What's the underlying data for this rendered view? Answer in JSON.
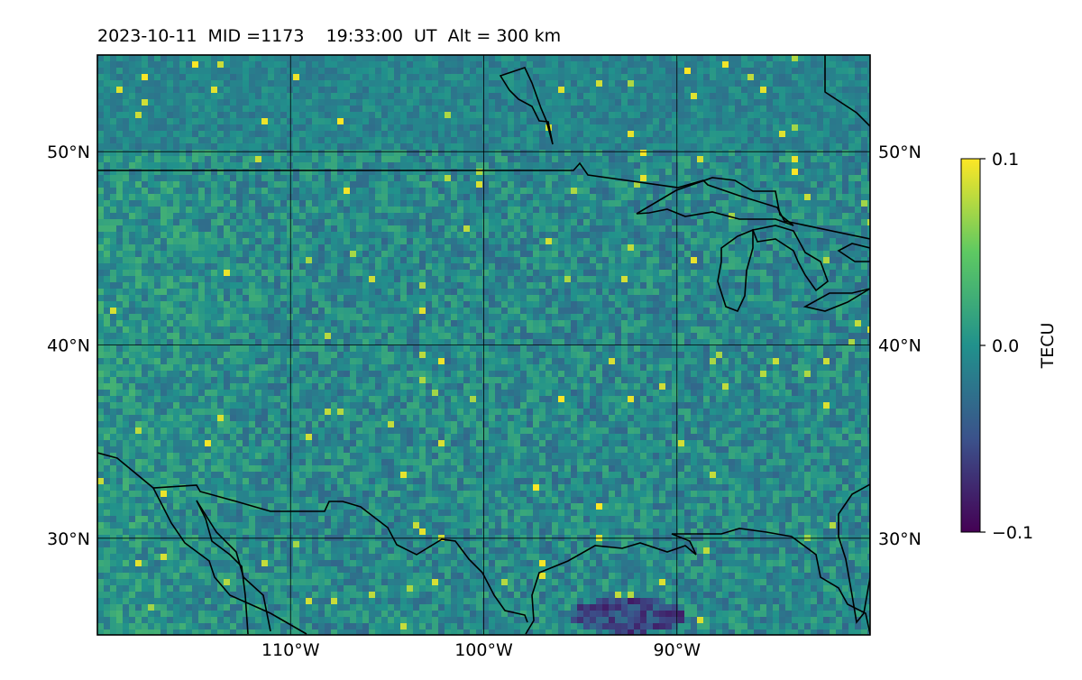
{
  "header": {
    "title": "2023-10-11  MID =1173    19:33:00  UT  Alt = 300 km"
  },
  "map": {
    "x_ticks": [
      {
        "label": "110°W",
        "lon": -110
      },
      {
        "label": "100°W",
        "lon": -100
      },
      {
        "label": "90°W",
        "lon": -90
      }
    ],
    "y_ticks": [
      {
        "label": "50°N",
        "lat": 50
      },
      {
        "label": "40°N",
        "lat": 40
      },
      {
        "label": "30°N",
        "lat": 30
      }
    ],
    "extent": {
      "lon_min": -120,
      "lon_max": -80,
      "lat_min": 25,
      "lat_max": 55
    },
    "field_note": "Gridded TEC anomaly field (viridis), values mostly near 0.0 with positive patches in the west and negative patches in the south."
  },
  "colorbar": {
    "label": "TECU",
    "colormap": [
      "#440154",
      "#3b528b",
      "#21918c",
      "#5ec962",
      "#fde725"
    ],
    "ticks": [
      {
        "label": "0.1",
        "value": 0.1
      },
      {
        "label": "0.0",
        "value": 0.0
      },
      {
        "label": "−0.1",
        "value": -0.1
      }
    ],
    "range": [
      -0.1,
      0.1
    ]
  }
}
